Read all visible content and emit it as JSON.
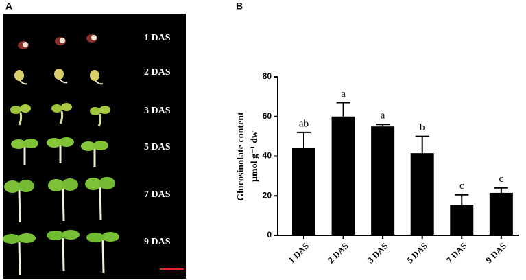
{
  "panel_labels": [
    "A",
    "B"
  ],
  "photo": {
    "labels": [
      "1 DAS",
      "2 DAS",
      "3 DAS",
      "5 DAS",
      "7 DAS",
      "9 DAS"
    ]
  },
  "chart_data": {
    "type": "bar",
    "y_label": [
      "Glucosinolate content",
      "μmol g⁻¹ dw"
    ],
    "categories": [
      "1 DAS",
      "2 DAS",
      "3 DAS",
      "5 DAS",
      "7 DAS",
      "9 DAS"
    ],
    "values": [
      44,
      60,
      55,
      41.5,
      15.5,
      21.5
    ],
    "errors": [
      8,
      7,
      1,
      8.5,
      5,
      2.5
    ],
    "annotations": [
      "ab",
      "a",
      "a",
      "b",
      "c",
      "c"
    ],
    "color": "#000000",
    "ylim": [
      0,
      80
    ],
    "yticks": [
      0,
      20,
      40,
      60,
      80
    ]
  }
}
